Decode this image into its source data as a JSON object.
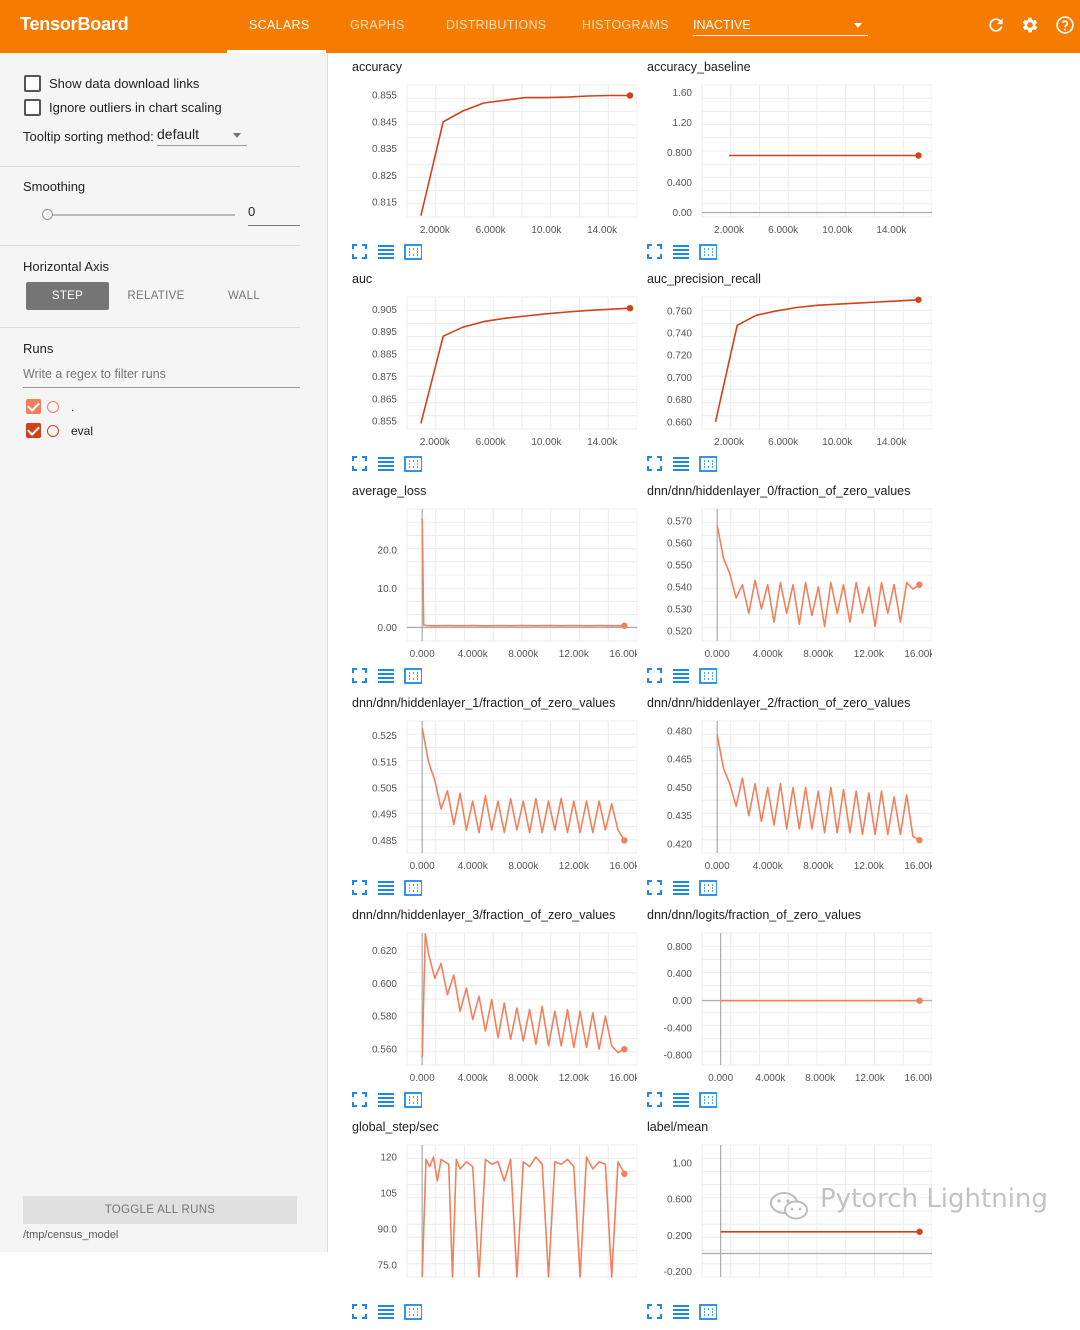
{
  "app": {
    "title": "TensorBoard"
  },
  "tabs": [
    {
      "label": "SCALARS",
      "active": true
    },
    {
      "label": "GRAPHS",
      "active": false
    },
    {
      "label": "DISTRIBUTIONS",
      "active": false
    },
    {
      "label": "HISTOGRAMS",
      "active": false
    }
  ],
  "inactive_select": "INACTIVE",
  "top_icons": [
    "refresh-icon",
    "settings-gear-icon",
    "help-icon"
  ],
  "sidebar": {
    "show_download_links": "Show data download links",
    "ignore_outliers": "Ignore outliers in chart scaling",
    "tooltip_label": "Tooltip sorting method:",
    "tooltip_value": "default",
    "smoothing_label": "Smoothing",
    "smoothing_value": "0",
    "smoothing_level": 0,
    "horizontal_axis_label": "Horizontal Axis",
    "axis_options": [
      "STEP",
      "RELATIVE",
      "WALL"
    ],
    "axis_selected": "STEP",
    "runs_label": "Runs",
    "regex_placeholder": "Write a regex to filter runs",
    "runs": [
      {
        "name": ".",
        "checked": true,
        "color": "#f2805c"
      },
      {
        "name": "eval",
        "checked": true,
        "color": "#d0421b"
      }
    ],
    "toggle_all": "TOGGLE ALL RUNS",
    "logdir": "/tmp/census_model"
  },
  "watermark": "Pytorch Lightning",
  "colors": {
    "accent": "#f57c00",
    "eval_line": "#d0421b",
    "train_line": "#f2805c",
    "tool_blue": "#1e88e5"
  },
  "chart_data": [
    {
      "type": "line",
      "title": "accuracy",
      "color": "#d0421b",
      "xlim": [
        0,
        16500
      ],
      "ylim": [
        0.8095,
        0.8587
      ],
      "xticks": [
        "2.000k",
        "6.000k",
        "10.00k",
        "14.00k"
      ],
      "xtick_values": [
        2000,
        6000,
        10000,
        14000
      ],
      "yticks": [
        "0.855",
        "0.845",
        "0.835",
        "0.825",
        "0.815"
      ],
      "ytick_values": [
        0.855,
        0.845,
        0.835,
        0.825,
        0.815
      ],
      "x": [
        1000,
        2600,
        4000,
        5500,
        7000,
        8500,
        10000,
        11500,
        13000,
        14500,
        16000
      ],
      "y": [
        0.81,
        0.845,
        0.849,
        0.852,
        0.853,
        0.854,
        0.854,
        0.8542,
        0.8546,
        0.8548,
        0.8548
      ]
    },
    {
      "type": "line",
      "title": "accuracy_baseline",
      "color": "#d0421b",
      "xlim": [
        0,
        17000
      ],
      "ylim": [
        -0.06,
        1.7
      ],
      "xticks": [
        "2.000k",
        "6.000k",
        "10.00k",
        "14.00k"
      ],
      "xtick_values": [
        2000,
        6000,
        10000,
        14000
      ],
      "yticks": [
        "1.60",
        "1.20",
        "0.800",
        "0.400",
        "0.00"
      ],
      "ytick_values": [
        1.6,
        1.2,
        0.8,
        0.4,
        0.0
      ],
      "x": [
        2000,
        16000
      ],
      "y": [
        0.76,
        0.76
      ]
    },
    {
      "type": "line",
      "title": "auc",
      "color": "#d0421b",
      "xlim": [
        0,
        16500
      ],
      "ylim": [
        0.8515,
        0.9105
      ],
      "xticks": [
        "2.000k",
        "6.000k",
        "10.00k",
        "14.00k"
      ],
      "xtick_values": [
        2000,
        6000,
        10000,
        14000
      ],
      "yticks": [
        "0.905",
        "0.895",
        "0.885",
        "0.875",
        "0.865",
        "0.855"
      ],
      "ytick_values": [
        0.905,
        0.895,
        0.885,
        0.875,
        0.865,
        0.855
      ],
      "x": [
        1000,
        2600,
        4000,
        5500,
        7000,
        8500,
        10000,
        11500,
        13000,
        14500,
        16000
      ],
      "y": [
        0.854,
        0.893,
        0.897,
        0.8995,
        0.901,
        0.902,
        0.903,
        0.9038,
        0.9045,
        0.905,
        0.9055
      ]
    },
    {
      "type": "line",
      "title": "auc_precision_recall",
      "color": "#d0421b",
      "xlim": [
        0,
        17000
      ],
      "ylim": [
        0.6535,
        0.7725
      ],
      "xticks": [
        "2.000k",
        "6.000k",
        "10.00k",
        "14.00k"
      ],
      "xtick_values": [
        2000,
        6000,
        10000,
        14000
      ],
      "yticks": [
        "0.760",
        "0.740",
        "0.720",
        "0.700",
        "0.680",
        "0.660"
      ],
      "ytick_values": [
        0.76,
        0.74,
        0.72,
        0.7,
        0.68,
        0.66
      ],
      "x": [
        1000,
        2600,
        4000,
        5500,
        7000,
        8500,
        10000,
        11500,
        13000,
        14500,
        16000
      ],
      "y": [
        0.66,
        0.747,
        0.756,
        0.76,
        0.763,
        0.765,
        0.766,
        0.767,
        0.768,
        0.769,
        0.77
      ]
    },
    {
      "type": "line",
      "title": "average_loss",
      "color": "#f2805c",
      "xlim": [
        -1200,
        17000
      ],
      "ylim": [
        -3.5,
        30.5
      ],
      "xticks": [
        "0.000",
        "4.000k",
        "8.000k",
        "12.00k",
        "16.00k"
      ],
      "xtick_values": [
        0,
        4000,
        8000,
        12000,
        16000
      ],
      "yticks": [
        "20.0",
        "10.0",
        "0.00"
      ],
      "ytick_values": [
        20,
        10,
        0
      ],
      "x": [
        0,
        120,
        400,
        1000,
        2000,
        3000,
        4000,
        5000,
        6000,
        7000,
        8000,
        9000,
        10000,
        11000,
        12000,
        13000,
        14000,
        15000,
        16000
      ],
      "y": [
        28,
        0.6,
        0.5,
        0.45,
        0.5,
        0.45,
        0.5,
        0.42,
        0.5,
        0.45,
        0.48,
        0.44,
        0.5,
        0.45,
        0.48,
        0.44,
        0.46,
        0.45,
        0.44
      ]
    },
    {
      "type": "line",
      "title": "dnn/dnn/hiddenlayer_0/fraction_of_zero_values",
      "color": "#f2805c",
      "xlim": [
        -1200,
        17000
      ],
      "ylim": [
        0.5154,
        0.5754
      ],
      "xticks": [
        "0.000",
        "4.000k",
        "8.000k",
        "12.00k",
        "16.00k"
      ],
      "xtick_values": [
        0,
        4000,
        8000,
        12000,
        16000
      ],
      "yticks": [
        "0.570",
        "0.560",
        "0.550",
        "0.540",
        "0.530",
        "0.520"
      ],
      "ytick_values": [
        0.57,
        0.56,
        0.55,
        0.54,
        0.53,
        0.52
      ],
      "x": [
        0,
        500,
        1000,
        1500,
        2000,
        2500,
        3000,
        3500,
        4000,
        4500,
        5000,
        5500,
        6000,
        6500,
        7000,
        7500,
        8000,
        8500,
        9000,
        9500,
        10000,
        10500,
        11000,
        11500,
        12000,
        12500,
        13000,
        13500,
        14000,
        14500,
        15000,
        15500,
        16000
      ],
      "y": [
        0.568,
        0.553,
        0.546,
        0.535,
        0.541,
        0.528,
        0.543,
        0.53,
        0.541,
        0.524,
        0.542,
        0.528,
        0.541,
        0.523,
        0.542,
        0.527,
        0.54,
        0.522,
        0.542,
        0.528,
        0.541,
        0.524,
        0.542,
        0.528,
        0.54,
        0.522,
        0.542,
        0.528,
        0.541,
        0.524,
        0.542,
        0.539,
        0.541
      ]
    },
    {
      "type": "line",
      "title": "dnn/dnn/hiddenlayer_1/fraction_of_zero_values",
      "color": "#f2805c",
      "xlim": [
        -1200,
        17000
      ],
      "ylim": [
        0.4802,
        0.5306
      ],
      "xticks": [
        "0.000",
        "4.000k",
        "8.000k",
        "12.00k",
        "16.00k"
      ],
      "xtick_values": [
        0,
        4000,
        8000,
        12000,
        16000
      ],
      "yticks": [
        "0.525",
        "0.515",
        "0.505",
        "0.495",
        "0.485"
      ],
      "ytick_values": [
        0.525,
        0.515,
        0.505,
        0.495,
        0.485
      ],
      "x": [
        0,
        500,
        1000,
        1500,
        2000,
        2500,
        3000,
        3500,
        4000,
        4500,
        5000,
        5500,
        6000,
        6500,
        7000,
        7500,
        8000,
        8500,
        9000,
        9500,
        10000,
        10500,
        11000,
        11500,
        12000,
        12500,
        13000,
        13500,
        14000,
        14500,
        15000,
        15500,
        16000
      ],
      "y": [
        0.528,
        0.515,
        0.508,
        0.497,
        0.504,
        0.491,
        0.503,
        0.489,
        0.5,
        0.488,
        0.502,
        0.489,
        0.5,
        0.488,
        0.501,
        0.489,
        0.5,
        0.488,
        0.501,
        0.488,
        0.5,
        0.489,
        0.501,
        0.488,
        0.5,
        0.488,
        0.5,
        0.488,
        0.5,
        0.489,
        0.499,
        0.489,
        0.485
      ]
    },
    {
      "type": "line",
      "title": "dnn/dnn/hiddenlayer_2/fraction_of_zero_values",
      "color": "#f2805c",
      "xlim": [
        -1200,
        17000
      ],
      "ylim": [
        0.4152,
        0.4853
      ],
      "xticks": [
        "0.000",
        "4.000k",
        "8.000k",
        "12.00k",
        "16.00k"
      ],
      "xtick_values": [
        0,
        4000,
        8000,
        12000,
        16000
      ],
      "yticks": [
        "0.480",
        "0.465",
        "0.450",
        "0.435",
        "0.420"
      ],
      "ytick_values": [
        0.48,
        0.465,
        0.45,
        0.435,
        0.42
      ],
      "x": [
        0,
        500,
        1000,
        1500,
        2000,
        2500,
        3000,
        3500,
        4000,
        4500,
        5000,
        5500,
        6000,
        6500,
        7000,
        7500,
        8000,
        8500,
        9000,
        9500,
        10000,
        10500,
        11000,
        11500,
        12000,
        12500,
        13000,
        13500,
        14000,
        14500,
        15000,
        15500,
        16000
      ],
      "y": [
        0.478,
        0.46,
        0.452,
        0.44,
        0.455,
        0.435,
        0.452,
        0.432,
        0.45,
        0.43,
        0.452,
        0.428,
        0.45,
        0.428,
        0.45,
        0.428,
        0.448,
        0.426,
        0.45,
        0.426,
        0.449,
        0.426,
        0.448,
        0.425,
        0.447,
        0.425,
        0.448,
        0.425,
        0.445,
        0.425,
        0.446,
        0.424,
        0.422
      ]
    },
    {
      "type": "line",
      "title": "dnn/dnn/hiddenlayer_3/fraction_of_zero_values",
      "color": "#f2805c",
      "xlim": [
        -1200,
        17000
      ],
      "ylim": [
        0.5504,
        0.6305
      ],
      "xticks": [
        "0.000",
        "4.000k",
        "8.000k",
        "12.00k",
        "16.00k"
      ],
      "xtick_values": [
        0,
        4000,
        8000,
        12000,
        16000
      ],
      "yticks": [
        "0.620",
        "0.600",
        "0.580",
        "0.560"
      ],
      "ytick_values": [
        0.62,
        0.6,
        0.58,
        0.56
      ],
      "x": [
        0,
        250,
        500,
        1000,
        1500,
        2000,
        2500,
        3000,
        3500,
        4000,
        4500,
        5000,
        5500,
        6000,
        6500,
        7000,
        7500,
        8000,
        8500,
        9000,
        9500,
        10000,
        10500,
        11000,
        11500,
        12000,
        12500,
        13000,
        13500,
        14000,
        14500,
        15000,
        15500,
        16000
      ],
      "y": [
        0.555,
        0.63,
        0.618,
        0.603,
        0.612,
        0.593,
        0.605,
        0.583,
        0.597,
        0.578,
        0.592,
        0.571,
        0.59,
        0.567,
        0.588,
        0.566,
        0.585,
        0.565,
        0.584,
        0.563,
        0.586,
        0.562,
        0.583,
        0.562,
        0.584,
        0.561,
        0.583,
        0.561,
        0.582,
        0.56,
        0.58,
        0.562,
        0.558,
        0.56
      ]
    },
    {
      "type": "line",
      "title": "dnn/dnn/logits/fraction_of_zero_values",
      "color": "#f2805c",
      "xlim": [
        -1500,
        17000
      ],
      "ylim": [
        -0.95,
        1.0
      ],
      "xticks": [
        "0.000",
        "4.000k",
        "8.000k",
        "12.00k",
        "16.00k"
      ],
      "xtick_values": [
        0,
        4000,
        8000,
        12000,
        16000
      ],
      "yticks": [
        "0.800",
        "0.400",
        "0.00",
        "-0.400",
        "-0.800"
      ],
      "ytick_values": [
        0.8,
        0.4,
        0.0,
        -0.4,
        -0.8
      ],
      "x": [
        0,
        16000
      ],
      "y": [
        0,
        0
      ]
    },
    {
      "type": "line",
      "title": "global_step/sec",
      "color": "#f2805c",
      "xlim": [
        -1200,
        17000
      ],
      "ylim": [
        70,
        125
      ],
      "xticks": [],
      "xtick_values": [],
      "yticks": [
        "120",
        "105",
        "90.0",
        "75.0"
      ],
      "ytick_values": [
        120,
        105,
        90,
        75
      ],
      "x": [
        0,
        300,
        600,
        900,
        1200,
        1500,
        1800,
        2100,
        2400,
        2700,
        3000,
        3500,
        4000,
        4500,
        5000,
        5500,
        6000,
        6500,
        7000,
        7500,
        8000,
        8500,
        9000,
        9500,
        10000,
        10500,
        11000,
        11500,
        12000,
        12500,
        13000,
        13500,
        14000,
        14500,
        15000,
        15500,
        16000
      ],
      "y": [
        70,
        119,
        116,
        120,
        110,
        119,
        118,
        117,
        70,
        119,
        115,
        118,
        116,
        70,
        119,
        117,
        118,
        110,
        119,
        70,
        118,
        116,
        120,
        117,
        70,
        118,
        117,
        119,
        116,
        70,
        120,
        115,
        118,
        117,
        70,
        118,
        113
      ]
    },
    {
      "type": "line",
      "title": "label/mean",
      "color": "#d0421b",
      "xlim": [
        -1500,
        17000
      ],
      "ylim": [
        -0.26,
        1.2
      ],
      "xticks": [],
      "xtick_values": [],
      "yticks": [
        "1.00",
        "0.600",
        "0.200",
        "-0.200"
      ],
      "ytick_values": [
        1.0,
        0.6,
        0.2,
        -0.2
      ],
      "x": [
        0,
        16000
      ],
      "y": [
        0.24,
        0.24
      ]
    }
  ]
}
